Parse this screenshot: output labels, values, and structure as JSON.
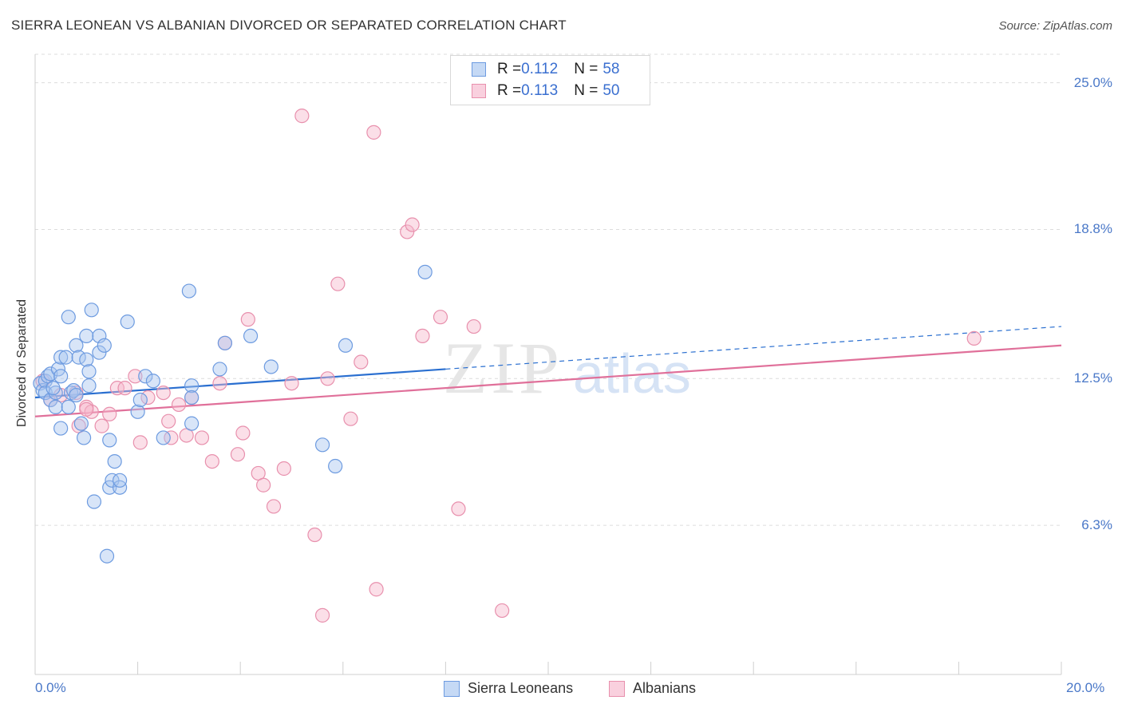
{
  "header": {
    "title": "SIERRA LEONEAN VS ALBANIAN DIVORCED OR SEPARATED CORRELATION CHART",
    "source": "Source: ZipAtlas.com"
  },
  "colors": {
    "blue_fill": "#a8c6ef",
    "blue_stroke": "#6d9be0",
    "blue_line": "#2a6fd0",
    "pink_fill": "#f6b9cd",
    "pink_stroke": "#e890ad",
    "pink_line": "#e0709a",
    "tick_text": "#4a78c8"
  },
  "legend": {
    "rows": [
      {
        "r_label": "R = ",
        "r_value": "0.112",
        "n_label": "N = ",
        "n_value": "58"
      },
      {
        "r_label": "R = ",
        "r_value": "0.113",
        "n_label": "N = ",
        "n_value": "50"
      }
    ],
    "bottom": [
      "Sierra Leoneans",
      "Albanians"
    ]
  },
  "watermark": {
    "zip": "ZIP",
    "atlas": "atlas"
  },
  "chart_data": {
    "type": "scatter",
    "title": "SIERRA LEONEAN VS ALBANIAN DIVORCED OR SEPARATED CORRELATION CHART",
    "xlabel": "",
    "ylabel": "Divorced or Separated",
    "xlim": [
      0,
      20
    ],
    "ylim": [
      0,
      26.2
    ],
    "x_tick_labels": [
      "0.0%",
      "20.0%"
    ],
    "y_ticks": [
      6.3,
      12.5,
      18.8,
      25.0
    ],
    "y_tick_labels": [
      "6.3%",
      "12.5%",
      "18.8%",
      "25.0%"
    ],
    "grid": "horizontal dashed",
    "legend_position": "top-center",
    "series": [
      {
        "name": "Sierra Leoneans",
        "color": "blue",
        "trend": {
          "x": [
            0,
            8
          ],
          "y": [
            11.7,
            12.9
          ],
          "dashed_to": [
            20,
            14.7
          ]
        },
        "points": [
          [
            0.1,
            12.3
          ],
          [
            0.15,
            12.0
          ],
          [
            0.2,
            12.4
          ],
          [
            0.2,
            11.9
          ],
          [
            0.25,
            12.6
          ],
          [
            0.3,
            11.6
          ],
          [
            0.3,
            12.7
          ],
          [
            0.4,
            11.3
          ],
          [
            0.4,
            11.9
          ],
          [
            0.45,
            12.9
          ],
          [
            0.5,
            12.6
          ],
          [
            0.5,
            10.4
          ],
          [
            0.5,
            13.4
          ],
          [
            0.6,
            13.4
          ],
          [
            0.65,
            11.3
          ],
          [
            0.65,
            15.1
          ],
          [
            0.7,
            11.9
          ],
          [
            0.75,
            12.0
          ],
          [
            0.8,
            11.8
          ],
          [
            0.8,
            13.9
          ],
          [
            0.85,
            13.4
          ],
          [
            0.9,
            10.6
          ],
          [
            0.95,
            10.0
          ],
          [
            1.0,
            14.3
          ],
          [
            1.0,
            13.3
          ],
          [
            1.05,
            12.8
          ],
          [
            1.1,
            15.4
          ],
          [
            1.15,
            7.3
          ],
          [
            1.25,
            14.3
          ],
          [
            1.25,
            13.6
          ],
          [
            1.35,
            13.9
          ],
          [
            1.4,
            5.0
          ],
          [
            1.45,
            9.9
          ],
          [
            1.45,
            7.9
          ],
          [
            1.5,
            8.2
          ],
          [
            1.55,
            9.0
          ],
          [
            1.65,
            7.9
          ],
          [
            1.65,
            8.2
          ],
          [
            1.8,
            14.9
          ],
          [
            2.0,
            11.1
          ],
          [
            2.05,
            11.6
          ],
          [
            2.15,
            12.6
          ],
          [
            2.3,
            12.4
          ],
          [
            2.5,
            10.0
          ],
          [
            3.0,
            16.2
          ],
          [
            3.05,
            12.2
          ],
          [
            3.05,
            10.6
          ],
          [
            3.05,
            11.7
          ],
          [
            3.6,
            12.9
          ],
          [
            3.7,
            14.0
          ],
          [
            4.2,
            14.3
          ],
          [
            4.6,
            13.0
          ],
          [
            5.6,
            9.7
          ],
          [
            5.85,
            8.8
          ],
          [
            6.05,
            13.9
          ],
          [
            7.6,
            17.0
          ],
          [
            1.05,
            12.2
          ],
          [
            0.35,
            12.1
          ]
        ]
      },
      {
        "name": "Albanians",
        "color": "pink",
        "trend": {
          "x": [
            0,
            20
          ],
          "y": [
            10.9,
            13.9
          ]
        },
        "points": [
          [
            0.15,
            12.4
          ],
          [
            0.3,
            11.6
          ],
          [
            0.5,
            11.8
          ],
          [
            0.8,
            11.9
          ],
          [
            0.85,
            10.5
          ],
          [
            1.0,
            11.3
          ],
          [
            1.1,
            11.1
          ],
          [
            1.3,
            10.5
          ],
          [
            1.45,
            11.0
          ],
          [
            1.6,
            12.1
          ],
          [
            1.75,
            12.1
          ],
          [
            1.95,
            12.6
          ],
          [
            2.05,
            9.8
          ],
          [
            2.2,
            11.7
          ],
          [
            2.5,
            11.9
          ],
          [
            2.6,
            10.7
          ],
          [
            2.65,
            10.0
          ],
          [
            2.8,
            11.4
          ],
          [
            2.95,
            10.1
          ],
          [
            3.05,
            11.7
          ],
          [
            3.25,
            10.0
          ],
          [
            3.45,
            9.0
          ],
          [
            3.6,
            12.3
          ],
          [
            3.7,
            14.0
          ],
          [
            3.95,
            9.3
          ],
          [
            4.05,
            10.2
          ],
          [
            4.15,
            15.0
          ],
          [
            4.35,
            8.5
          ],
          [
            4.45,
            8.0
          ],
          [
            4.65,
            7.1
          ],
          [
            4.85,
            8.7
          ],
          [
            5.0,
            12.3
          ],
          [
            5.2,
            23.6
          ],
          [
            5.45,
            5.9
          ],
          [
            5.6,
            2.5
          ],
          [
            5.7,
            12.5
          ],
          [
            5.9,
            16.5
          ],
          [
            6.15,
            10.8
          ],
          [
            6.35,
            13.2
          ],
          [
            6.6,
            22.9
          ],
          [
            6.65,
            3.6
          ],
          [
            7.25,
            18.7
          ],
          [
            7.35,
            19.0
          ],
          [
            7.55,
            14.3
          ],
          [
            7.9,
            15.1
          ],
          [
            8.25,
            7.0
          ],
          [
            8.55,
            14.7
          ],
          [
            9.1,
            2.7
          ],
          [
            18.3,
            14.2
          ],
          [
            1.0,
            11.2
          ]
        ]
      }
    ]
  }
}
